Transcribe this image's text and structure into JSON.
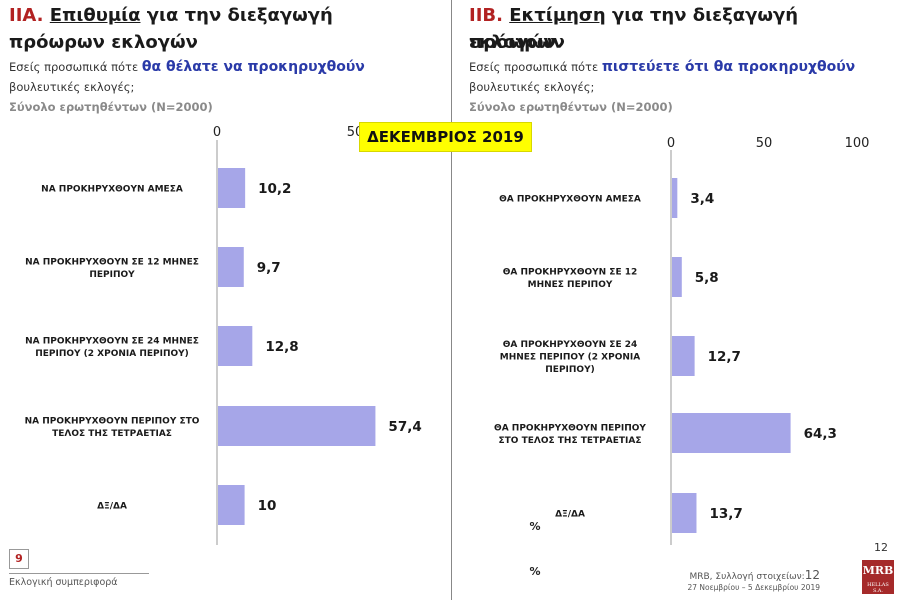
{
  "left_panel": {
    "code": "IIA.",
    "title_underlined": "Επιθυμία",
    "title_rest": " για την διεξαγωγή",
    "title_line2": "πρόωρων εκλογών",
    "question_prefix": "Εσείς προσωπικά πότε ",
    "question_highlight": "θα θέλατε να προκηρυχθούν",
    "question_line2": "βουλευτικές εκλογές;",
    "base": "Σύνολο ερωτηθέντων (N=2000)"
  },
  "right_panel": {
    "code": "IIB.",
    "title_underlined": "Εκτίμηση",
    "title_rest": " για την διεξαγωγή πρόωρων",
    "title_line2": "εκλογών",
    "question_prefix": "Εσείς προσωπικά πότε ",
    "question_highlight": "πιστεύετε ότι θα προκηρυχθούν",
    "question_line2": "βουλευτικές εκλογές;",
    "base": "Σύνολο ερωτηθέντων (N=2000)"
  },
  "badge": "ΔΕΚΕΜΒΡΙΟΣ 2019",
  "footer": {
    "page_box": "9",
    "section": "Εκλογική συμπεριφορά",
    "source_prefix": "MRB, Συλλογή στοιχείων:",
    "source_page": "12",
    "dates": "27 Νοεμβρίου – 5 Δεκεμβρίου 2019",
    "page_number": "12",
    "logo_main": "MRB",
    "logo_sub": "HELLAS S.A."
  },
  "colors": {
    "bar": "#a6a6e8",
    "accent": "#2a3aa8",
    "code": "#b22222",
    "badge": "#ffff00"
  },
  "chart_data": [
    {
      "type": "bar",
      "orientation": "horizontal",
      "categories": [
        [
          "ΝΑ ΠΡΟΚΗΡΥΧΘΟΥΝ ΑΜΕΣΑ"
        ],
        [
          "ΝΑ ΠΡΟΚΗΡΥΧΘΟΥΝ ΣΕ 12 ΜΗΝΕΣ",
          "ΠΕΡΙΠΟΥ"
        ],
        [
          "ΝΑ ΠΡΟΚΗΡΥΧΘΟΥΝ ΣΕ 24 ΜΗΝΕΣ",
          "ΠΕΡΙΠΟΥ (2 ΧΡΟΝΙΑ ΠΕΡΙΠΟΥ)"
        ],
        [
          "ΝΑ ΠΡΟΚΗΡΥΧΘΟΥΝ ΠΕΡΙΠΟΥ ΣΤΟ",
          "ΤΕΛΟΣ ΤΗΣ ΤΕΤΡΑΕΤΙΑΣ"
        ],
        [
          "ΔΞ/ΔΑ"
        ]
      ],
      "values": [
        10.2,
        9.7,
        12.8,
        57.4,
        10
      ],
      "value_labels": [
        "10,2",
        "9,7",
        "12,8",
        "57,4",
        "10"
      ],
      "xlim": [
        0,
        100
      ],
      "ticks": [
        "0",
        "50"
      ],
      "tick_values": [
        0,
        50
      ]
    },
    {
      "type": "bar",
      "orientation": "horizontal",
      "categories": [
        [
          "ΘΑ ΠΡΟΚΗΡΥΧΘΟΥΝ ΑΜΕΣΑ"
        ],
        [
          "ΘΑ ΠΡΟΚΗΡΥΧΘΟΥΝ ΣΕ 12",
          "ΜΗΝΕΣ ΠΕΡΙΠΟΥ"
        ],
        [
          "ΘΑ ΠΡΟΚΗΡΥΧΘΟΥΝ ΣΕ 24",
          "ΜΗΝΕΣ ΠΕΡΙΠΟΥ (2 ΧΡΟΝΙΑ",
          "ΠΕΡΙΠΟΥ)"
        ],
        [
          "ΘΑ ΠΡΟΚΗΡΥΧΘΟΥΝ ΠΕΡΙΠΟΥ",
          "ΣΤΟ ΤΕΛΟΣ ΤΗΣ ΤΕΤΡΑΕΤΙΑΣ"
        ],
        [
          "ΔΞ/ΔΑ"
        ]
      ],
      "values": [
        3.4,
        5.8,
        12.7,
        64.3,
        13.7
      ],
      "value_labels": [
        "3,4",
        "5,8",
        "12,7",
        "64,3",
        "13,7"
      ],
      "xlim": [
        0,
        100
      ],
      "ticks": [
        "0",
        "50",
        "100"
      ],
      "tick_values": [
        0,
        50,
        100
      ],
      "unit_marks": [
        "%",
        "%"
      ]
    }
  ]
}
